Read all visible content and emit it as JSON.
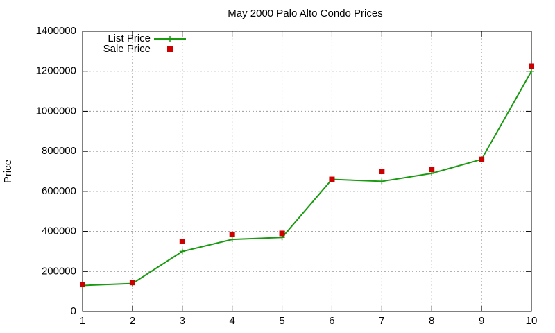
{
  "chart_data": {
    "type": "line",
    "title": "May 2000 Palo Alto Condo Prices",
    "y_label": "Price",
    "x": [
      1,
      2,
      3,
      4,
      5,
      6,
      7,
      8,
      9,
      10
    ],
    "series": [
      {
        "name": "List Price",
        "color": "#199a10",
        "line": true,
        "marker": "plus",
        "values": [
          130000,
          140000,
          300000,
          360000,
          370000,
          660000,
          650000,
          690000,
          760000,
          1200000
        ]
      },
      {
        "name": "Sale Price",
        "color": "#cc0000",
        "line": false,
        "marker": "square",
        "values": [
          135000,
          145000,
          350000,
          385000,
          390000,
          660000,
          700000,
          710000,
          760000,
          1225000
        ]
      }
    ],
    "xlim": [
      1,
      10
    ],
    "xticks": [
      1,
      2,
      3,
      4,
      5,
      6,
      7,
      8,
      9,
      10
    ],
    "ylim": [
      0,
      1400000
    ],
    "yticks": [
      0,
      200000,
      400000,
      600000,
      800000,
      1000000,
      1200000,
      1400000
    ],
    "grid": true,
    "legend": "top-left"
  }
}
